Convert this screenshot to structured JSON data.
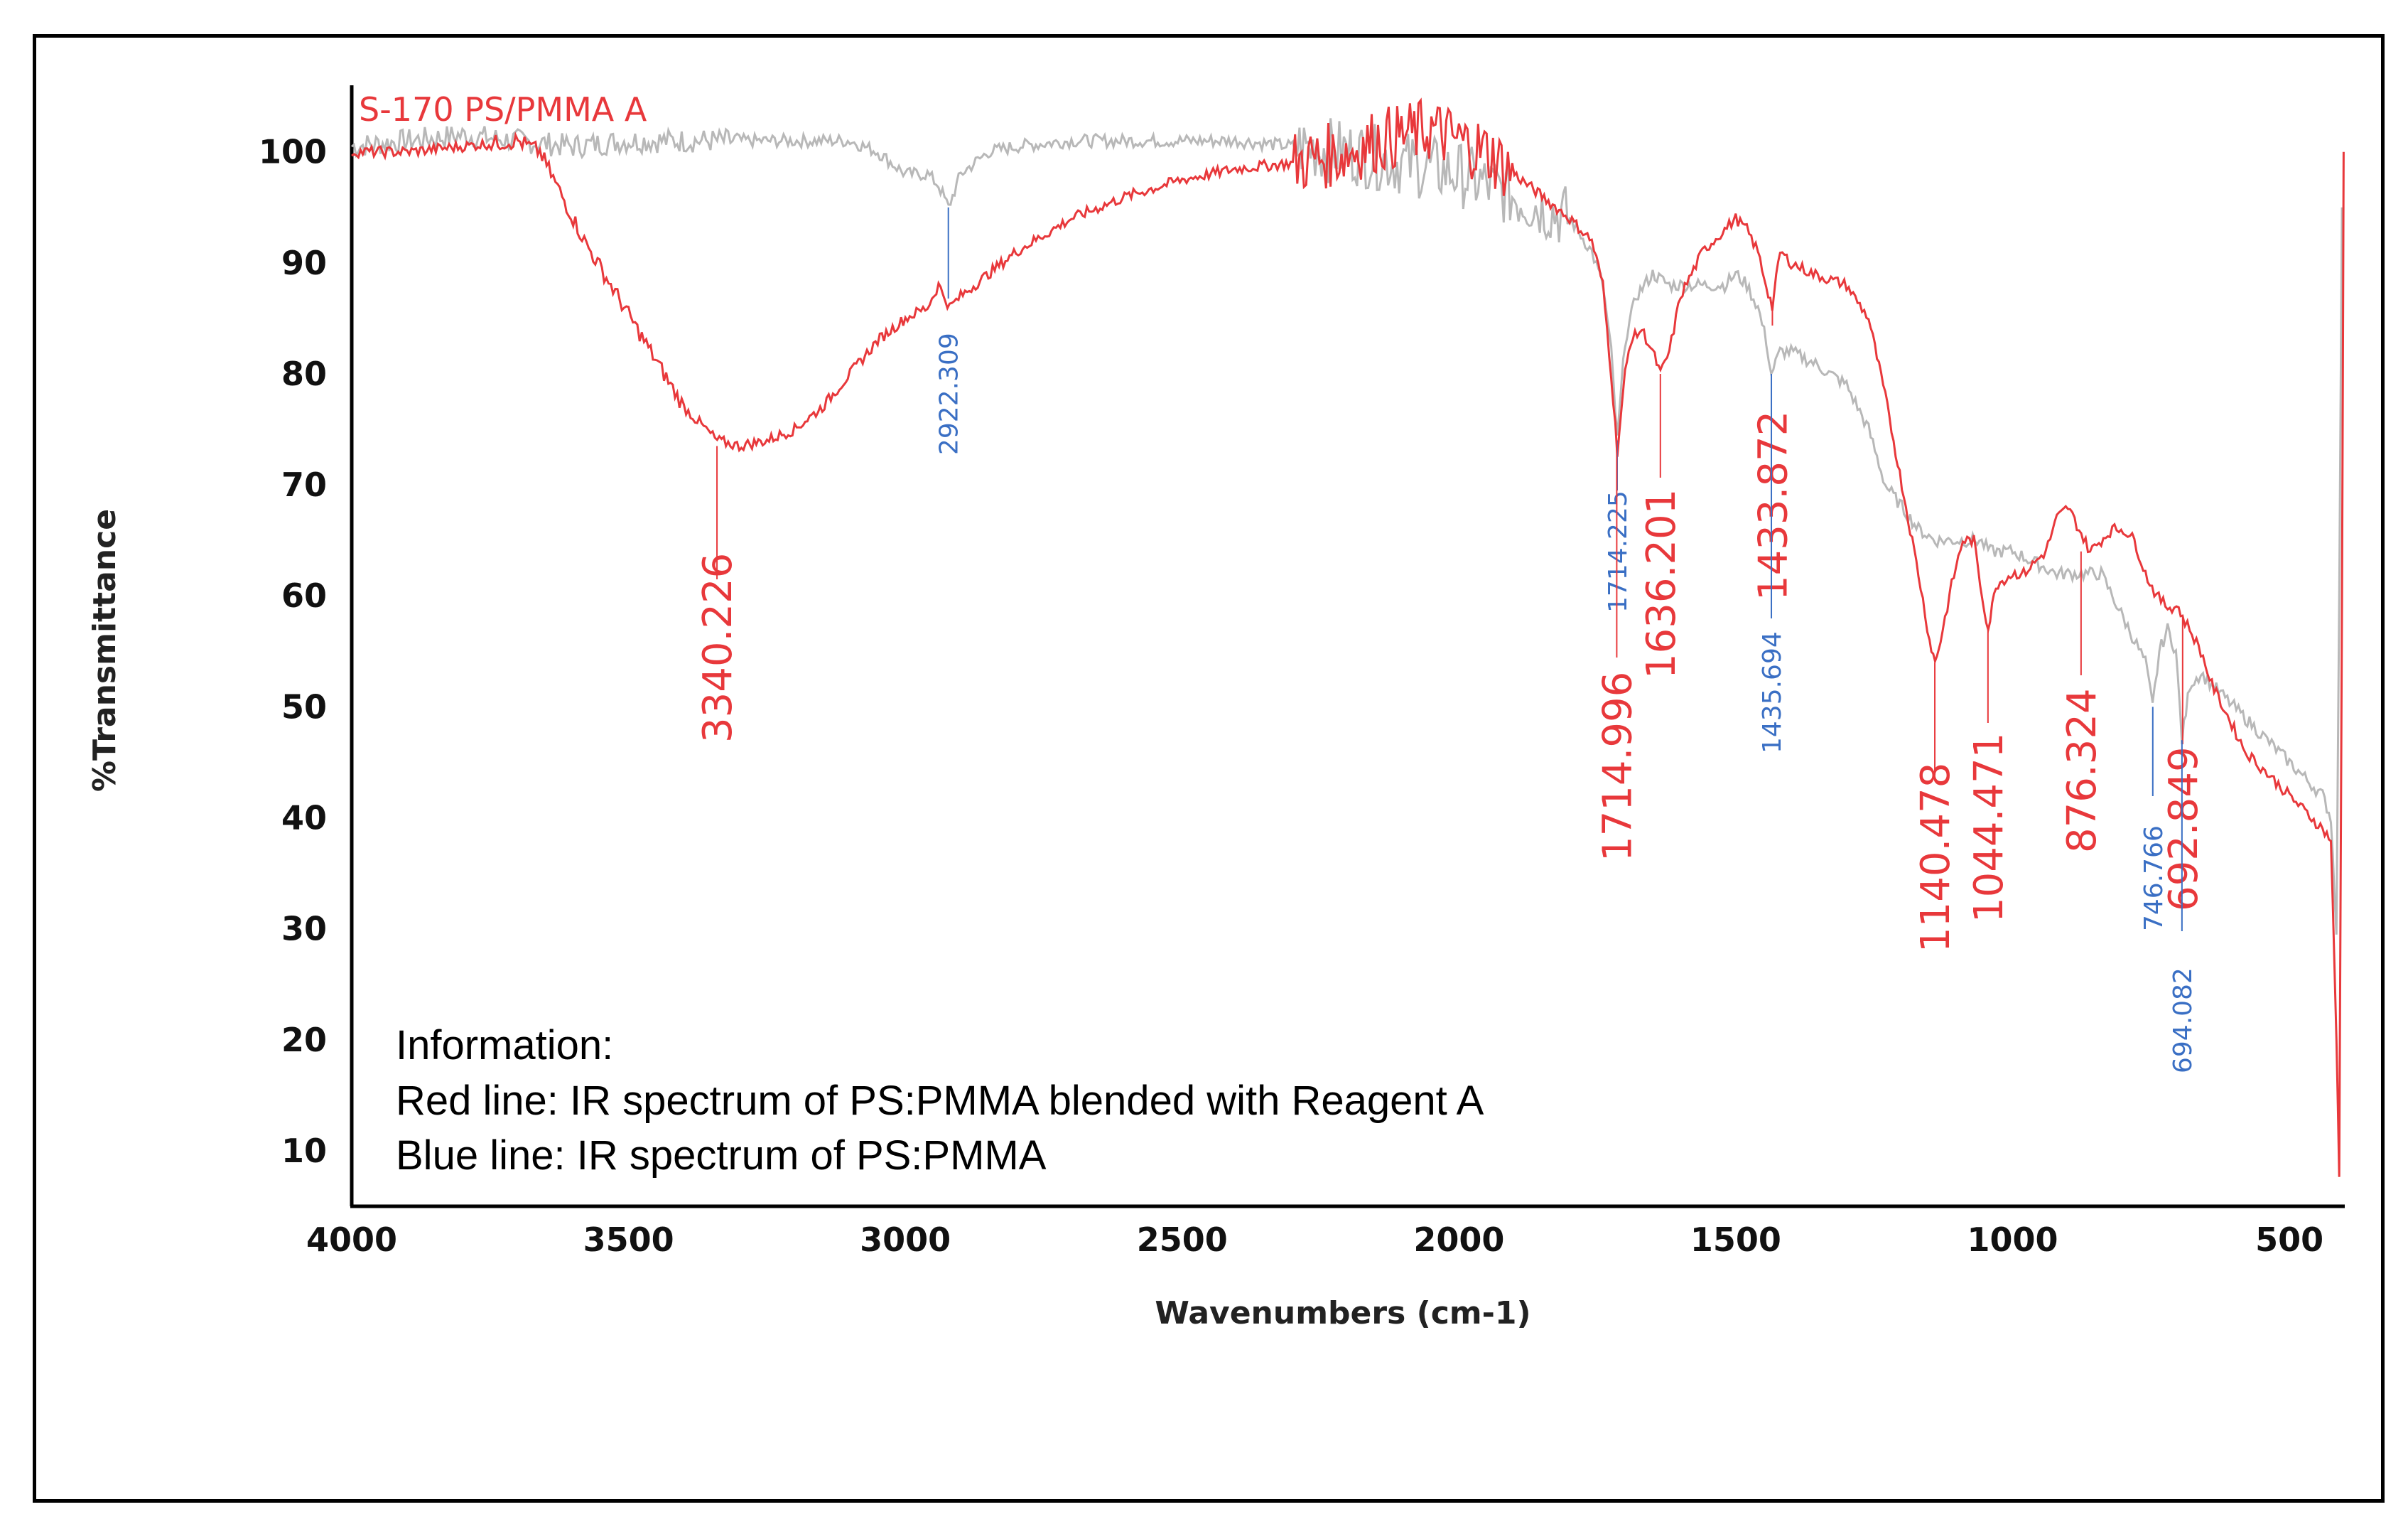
{
  "chart_data": {
    "type": "line",
    "title": "S-170 PS/PMMA A",
    "xlabel": "Wavenumbers (cm-1)",
    "ylabel": "%Transmittance",
    "xlim": [
      4000,
      400
    ],
    "ylim": [
      5,
      106
    ],
    "x_ticks": [
      4000,
      3500,
      3000,
      2500,
      2000,
      1500,
      1000,
      500
    ],
    "y_ticks": [
      10,
      20,
      30,
      40,
      50,
      60,
      70,
      80,
      90,
      100
    ],
    "colors": {
      "red": "#e8383b",
      "red_dark": "#b00010",
      "gray": "#b8b8b8",
      "blue": "#3a6fc4"
    },
    "series": [
      {
        "name": "PS:PMMA blended with Reagent A",
        "color": "#e8383b",
        "points": [
          [
            4000,
            100
          ],
          [
            3900,
            100
          ],
          [
            3800,
            100.5
          ],
          [
            3700,
            101
          ],
          [
            3660,
            100
          ],
          [
            3620,
            96
          ],
          [
            3580,
            92
          ],
          [
            3520,
            87
          ],
          [
            3460,
            82
          ],
          [
            3400,
            77
          ],
          [
            3340,
            74
          ],
          [
            3300,
            73.5
          ],
          [
            3250,
            74
          ],
          [
            3200,
            75
          ],
          [
            3150,
            77
          ],
          [
            3100,
            80
          ],
          [
            3050,
            83
          ],
          [
            3000,
            85
          ],
          [
            2960,
            86
          ],
          [
            2940,
            88
          ],
          [
            2920,
            86
          ],
          [
            2900,
            87
          ],
          [
            2850,
            89
          ],
          [
            2800,
            91
          ],
          [
            2700,
            94
          ],
          [
            2600,
            96
          ],
          [
            2500,
            97.5
          ],
          [
            2400,
            98.5
          ],
          [
            2300,
            99
          ],
          [
            2200,
            100
          ],
          [
            2150,
            101
          ],
          [
            2100,
            101.5
          ],
          [
            2050,
            102
          ],
          [
            2000,
            101
          ],
          [
            1950,
            100
          ],
          [
            1900,
            98
          ],
          [
            1850,
            96
          ],
          [
            1800,
            94
          ],
          [
            1760,
            92
          ],
          [
            1740,
            88
          ],
          [
            1725,
            80
          ],
          [
            1714,
            73
          ],
          [
            1700,
            80
          ],
          [
            1690,
            83
          ],
          [
            1670,
            84
          ],
          [
            1650,
            82
          ],
          [
            1636,
            80
          ],
          [
            1620,
            82
          ],
          [
            1600,
            87
          ],
          [
            1560,
            91
          ],
          [
            1520,
            93
          ],
          [
            1500,
            94
          ],
          [
            1480,
            93
          ],
          [
            1460,
            91
          ],
          [
            1445,
            88
          ],
          [
            1434,
            86
          ],
          [
            1420,
            91
          ],
          [
            1400,
            90
          ],
          [
            1360,
            89
          ],
          [
            1300,
            88
          ],
          [
            1260,
            85
          ],
          [
            1230,
            78
          ],
          [
            1200,
            70
          ],
          [
            1170,
            62
          ],
          [
            1150,
            56
          ],
          [
            1140,
            54
          ],
          [
            1130,
            56
          ],
          [
            1110,
            61
          ],
          [
            1090,
            65
          ],
          [
            1070,
            65
          ],
          [
            1055,
            60
          ],
          [
            1044,
            57
          ],
          [
            1030,
            61
          ],
          [
            1000,
            62
          ],
          [
            980,
            62
          ],
          [
            960,
            63
          ],
          [
            940,
            64
          ],
          [
            920,
            67
          ],
          [
            900,
            68
          ],
          [
            880,
            66
          ],
          [
            860,
            64
          ],
          [
            840,
            65
          ],
          [
            820,
            66
          ],
          [
            800,
            66
          ],
          [
            780,
            65
          ],
          [
            760,
            62
          ],
          [
            740,
            60
          ],
          [
            720,
            59
          ],
          [
            700,
            59
          ],
          [
            693,
            58
          ],
          [
            680,
            57
          ],
          [
            660,
            55
          ],
          [
            640,
            52
          ],
          [
            620,
            50
          ],
          [
            600,
            48
          ],
          [
            580,
            46
          ],
          [
            560,
            45
          ],
          [
            540,
            44
          ],
          [
            520,
            43
          ],
          [
            500,
            42
          ],
          [
            480,
            41
          ],
          [
            460,
            40
          ],
          [
            440,
            39
          ],
          [
            425,
            38
          ],
          [
            415,
            20
          ],
          [
            410,
            8
          ],
          [
            405,
            60
          ],
          [
            402,
            100
          ]
        ]
      },
      {
        "name": "PS:PMMA",
        "color": "#b8b8b8",
        "points": [
          [
            4000,
            100.5
          ],
          [
            3900,
            101
          ],
          [
            3800,
            101.5
          ],
          [
            3700,
            101
          ],
          [
            3600,
            100.5
          ],
          [
            3500,
            101
          ],
          [
            3400,
            101
          ],
          [
            3300,
            101
          ],
          [
            3200,
            101
          ],
          [
            3100,
            101
          ],
          [
            3050,
            100
          ],
          [
            3000,
            98
          ],
          [
            2960,
            98
          ],
          [
            2940,
            97
          ],
          [
            2922,
            95
          ],
          [
            2900,
            98
          ],
          [
            2850,
            100
          ],
          [
            2800,
            100.5
          ],
          [
            2700,
            101
          ],
          [
            2600,
            101
          ],
          [
            2500,
            101
          ],
          [
            2400,
            101
          ],
          [
            2300,
            100.5
          ],
          [
            2200,
            100
          ],
          [
            2100,
            99
          ],
          [
            2000,
            98
          ],
          [
            1950,
            97
          ],
          [
            1900,
            96
          ],
          [
            1850,
            95
          ],
          [
            1800,
            94
          ],
          [
            1760,
            91
          ],
          [
            1740,
            88
          ],
          [
            1725,
            82
          ],
          [
            1714,
            74
          ],
          [
            1700,
            83
          ],
          [
            1680,
            87
          ],
          [
            1650,
            89
          ],
          [
            1620,
            88
          ],
          [
            1600,
            88
          ],
          [
            1560,
            88
          ],
          [
            1520,
            88
          ],
          [
            1500,
            89
          ],
          [
            1480,
            88
          ],
          [
            1460,
            86
          ],
          [
            1445,
            83
          ],
          [
            1436,
            80
          ],
          [
            1420,
            82
          ],
          [
            1400,
            82
          ],
          [
            1360,
            81
          ],
          [
            1300,
            79
          ],
          [
            1260,
            75
          ],
          [
            1230,
            70
          ],
          [
            1200,
            68
          ],
          [
            1170,
            66
          ],
          [
            1140,
            65
          ],
          [
            1100,
            65
          ],
          [
            1060,
            65
          ],
          [
            1040,
            64
          ],
          [
            1020,
            64
          ],
          [
            1000,
            64
          ],
          [
            960,
            63
          ],
          [
            920,
            62
          ],
          [
            880,
            62
          ],
          [
            860,
            62
          ],
          [
            840,
            62
          ],
          [
            800,
            58
          ],
          [
            780,
            56
          ],
          [
            760,
            54
          ],
          [
            747,
            50
          ],
          [
            735,
            55
          ],
          [
            720,
            57
          ],
          [
            705,
            55
          ],
          [
            694,
            47
          ],
          [
            680,
            52
          ],
          [
            660,
            53
          ],
          [
            640,
            52
          ],
          [
            620,
            51
          ],
          [
            600,
            50
          ],
          [
            580,
            49
          ],
          [
            560,
            48
          ],
          [
            540,
            47
          ],
          [
            520,
            46
          ],
          [
            500,
            45
          ],
          [
            480,
            44
          ],
          [
            460,
            43
          ],
          [
            440,
            42
          ],
          [
            425,
            40
          ],
          [
            415,
            30
          ],
          [
            410,
            60
          ],
          [
            405,
            95
          ]
        ]
      }
    ],
    "annotations": [
      {
        "label": "3340.226",
        "x": 3340.226,
        "series": "red"
      },
      {
        "label": "2922.309",
        "x": 2922.309,
        "series": "blue"
      },
      {
        "label": "1714.225",
        "x": 1714.225,
        "series": "blue"
      },
      {
        "label": "1714.996",
        "x": 1714.996,
        "series": "red"
      },
      {
        "label": "1636.201",
        "x": 1636.201,
        "series": "red"
      },
      {
        "label": "1433.872",
        "x": 1433.872,
        "series": "red"
      },
      {
        "label": "1435.694",
        "x": 1435.694,
        "series": "blue"
      },
      {
        "label": "1140.478",
        "x": 1140.478,
        "series": "red"
      },
      {
        "label": "1044.471",
        "x": 1044.471,
        "series": "red"
      },
      {
        "label": "876.324",
        "x": 876.324,
        "series": "red"
      },
      {
        "label": "746.766",
        "x": 746.766,
        "series": "blue"
      },
      {
        "label": "692.849",
        "x": 692.849,
        "series": "red"
      },
      {
        "label": "694.082",
        "x": 694.082,
        "series": "blue"
      }
    ],
    "info": [
      "Information:",
      "Red line: IR spectrum of PS:PMMA  blended with Reagent A",
      "Blue line: IR spectrum of PS:PMMA"
    ]
  }
}
